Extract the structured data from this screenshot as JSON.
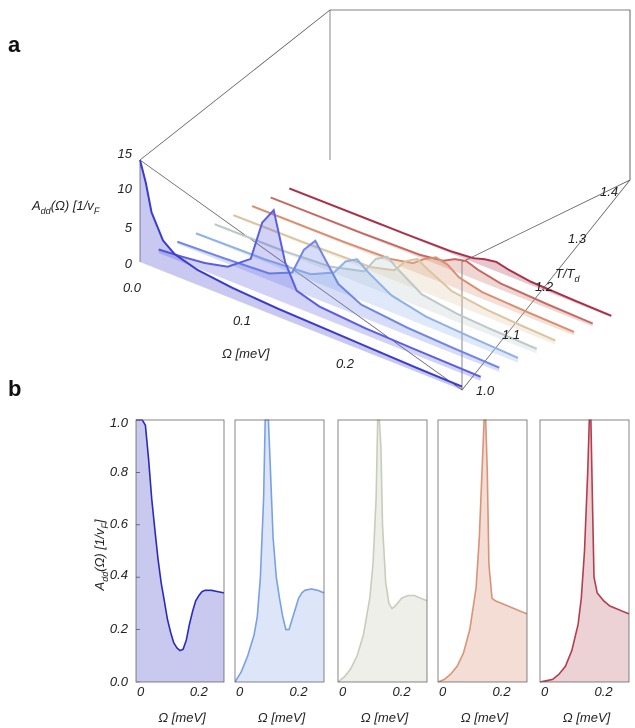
{
  "panel_a": {
    "letter": "a",
    "z_axis_label": "A",
    "z_axis_label_sub": "dd",
    "z_axis_label_rest": "(Ω) [1/v",
    "z_axis_label_sub2": "F",
    "x_axis_label": "Ω [meV]",
    "t_axis_label": "T/T",
    "t_axis_label_sub": "d"
  },
  "panel_b": {
    "letter": "b",
    "y_axis_label": "A",
    "y_axis_label_sub": "dd",
    "y_axis_label_rest": "(Ω) [1/v",
    "y_axis_label_sub2": "F",
    "y_axis_label_end": "]",
    "x_axis_label": "Ω [meV]"
  },
  "chart_data": [
    {
      "type": "line",
      "title": "",
      "xlabel": "Ω [meV]",
      "ylabel": "A_dd(Ω) [1/v_F]",
      "zlabel": "T/T_d",
      "xticks": [
        "0.0",
        "0.1",
        "0.2"
      ],
      "yticks": [
        "0",
        "5",
        "10",
        "15"
      ],
      "zticks": [
        "1.0",
        "1.1",
        "1.2",
        "1.3",
        "1.4"
      ],
      "ylim": [
        0,
        15
      ],
      "xlim": [
        0,
        0.28
      ],
      "series": [
        {
          "T": 1.0,
          "color": "#3b3bcc",
          "x": [
            0,
            0.005,
            0.01,
            0.02,
            0.03,
            0.05,
            0.08,
            0.12,
            0.16,
            0.2,
            0.24,
            0.28
          ],
          "values": [
            15,
            12,
            8,
            4.5,
            3.2,
            2.2,
            1.6,
            1.2,
            1.0,
            0.8,
            0.6,
            0.5
          ]
        },
        {
          "T": 1.05,
          "color": "#5a5fe0",
          "x": [
            0,
            0.02,
            0.04,
            0.06,
            0.08,
            0.09,
            0.1,
            0.11,
            0.12,
            0.14,
            0.18,
            0.22,
            0.28
          ],
          "values": [
            0.5,
            0.8,
            1.2,
            2.0,
            4.5,
            10.5,
            13.0,
            6.0,
            2.5,
            1.5,
            1.0,
            0.8,
            0.6
          ]
        },
        {
          "T": 1.1,
          "color": "#6f86e6",
          "x": [
            0,
            0.04,
            0.08,
            0.1,
            0.11,
            0.12,
            0.13,
            0.14,
            0.16,
            0.2,
            0.24,
            0.28
          ],
          "values": [
            0.3,
            0.6,
            1.0,
            2.5,
            6.5,
            8.5,
            6.0,
            3.5,
            1.8,
            1.1,
            0.8,
            0.6
          ]
        },
        {
          "T": 1.15,
          "color": "#8fb0e8",
          "x": [
            0,
            0.06,
            0.1,
            0.12,
            0.13,
            0.14,
            0.15,
            0.17,
            0.2,
            0.24,
            0.28
          ],
          "values": [
            0.2,
            0.4,
            0.9,
            2.5,
            4.8,
            5.8,
            4.5,
            2.5,
            1.4,
            1.0,
            0.7
          ]
        },
        {
          "T": 1.2,
          "color": "#bcc8c8",
          "x": [
            0,
            0.06,
            0.1,
            0.13,
            0.14,
            0.15,
            0.16,
            0.18,
            0.21,
            0.24,
            0.28
          ],
          "values": [
            0.2,
            0.3,
            0.7,
            2.0,
            4.5,
            5.5,
            4.2,
            2.0,
            1.2,
            0.9,
            0.7
          ]
        },
        {
          "T": 1.25,
          "color": "#dcc4a0",
          "x": [
            0,
            0.06,
            0.12,
            0.14,
            0.15,
            0.16,
            0.17,
            0.19,
            0.22,
            0.25,
            0.28
          ],
          "values": [
            0.2,
            0.3,
            0.6,
            1.5,
            3.5,
            4.5,
            3.5,
            1.8,
            1.1,
            0.8,
            0.6
          ]
        },
        {
          "T": 1.3,
          "color": "#d89070",
          "x": [
            0,
            0.08,
            0.12,
            0.14,
            0.15,
            0.16,
            0.17,
            0.18,
            0.2,
            0.24,
            0.28
          ],
          "values": [
            0.2,
            0.3,
            0.5,
            1.2,
            2.5,
            3.4,
            3.0,
            1.8,
            1.0,
            0.7,
            0.5
          ]
        },
        {
          "T": 1.35,
          "color": "#c56a62",
          "x": [
            0,
            0.08,
            0.13,
            0.15,
            0.16,
            0.17,
            0.18,
            0.2,
            0.24,
            0.28
          ],
          "values": [
            0.1,
            0.2,
            0.4,
            0.9,
            1.8,
            2.2,
            1.6,
            0.9,
            0.6,
            0.4
          ]
        },
        {
          "T": 1.4,
          "color": "#a8324a",
          "x": [
            0,
            0.1,
            0.14,
            0.16,
            0.17,
            0.18,
            0.19,
            0.21,
            0.25,
            0.28
          ],
          "values": [
            0.1,
            0.2,
            0.3,
            0.6,
            1.1,
            1.4,
            1.0,
            0.5,
            0.3,
            0.2
          ]
        }
      ]
    },
    {
      "type": "area",
      "title": "",
      "xlabel": "Ω [meV]",
      "ylabel": "A_dd(Ω) [1/v_F]",
      "ylim": [
        0,
        1.0
      ],
      "xlim": [
        0,
        0.28
      ],
      "yticks": [
        "0.0",
        "0.2",
        "0.4",
        "0.6",
        "0.8",
        "1.0"
      ],
      "xticks": [
        "0",
        "0.2"
      ],
      "series": [
        {
          "name": "",
          "line_color": "#2a2ab8",
          "fill_color": "#c9c8ee",
          "x": [
            0.0,
            0.005,
            0.01,
            0.02,
            0.03,
            0.04,
            0.05,
            0.06,
            0.07,
            0.08,
            0.09,
            0.1,
            0.11,
            0.12,
            0.13,
            0.14,
            0.15,
            0.16,
            0.17,
            0.18,
            0.19,
            0.2,
            0.21,
            0.22,
            0.23,
            0.24,
            0.26,
            0.28
          ],
          "values": [
            1.0,
            1.0,
            1.0,
            1.0,
            0.98,
            0.85,
            0.7,
            0.58,
            0.47,
            0.38,
            0.31,
            0.24,
            0.19,
            0.15,
            0.13,
            0.12,
            0.125,
            0.16,
            0.22,
            0.27,
            0.31,
            0.33,
            0.345,
            0.35,
            0.35,
            0.35,
            0.345,
            0.34
          ]
        },
        {
          "name": "",
          "line_color": "#7aa0e4",
          "fill_color": "#dde6f8",
          "x": [
            0.0,
            0.02,
            0.04,
            0.06,
            0.07,
            0.08,
            0.09,
            0.095,
            0.1,
            0.105,
            0.11,
            0.12,
            0.13,
            0.14,
            0.15,
            0.16,
            0.17,
            0.18,
            0.19,
            0.2,
            0.21,
            0.22,
            0.24,
            0.26,
            0.28
          ],
          "values": [
            0.0,
            0.04,
            0.1,
            0.18,
            0.25,
            0.4,
            0.7,
            1.0,
            1.0,
            1.0,
            0.85,
            0.55,
            0.4,
            0.32,
            0.25,
            0.2,
            0.2,
            0.24,
            0.28,
            0.32,
            0.34,
            0.35,
            0.355,
            0.35,
            0.34
          ]
        },
        {
          "name": "",
          "line_color": "#c8ccbc",
          "fill_color": "#efefe9",
          "x": [
            0.0,
            0.02,
            0.04,
            0.06,
            0.08,
            0.1,
            0.11,
            0.12,
            0.125,
            0.13,
            0.135,
            0.14,
            0.15,
            0.16,
            0.17,
            0.18,
            0.2,
            0.22,
            0.24,
            0.26,
            0.28
          ],
          "values": [
            0.0,
            0.02,
            0.05,
            0.1,
            0.18,
            0.32,
            0.45,
            0.7,
            1.0,
            1.0,
            0.9,
            0.6,
            0.38,
            0.3,
            0.28,
            0.29,
            0.32,
            0.33,
            0.33,
            0.32,
            0.31
          ]
        },
        {
          "name": "",
          "line_color": "#d89478",
          "fill_color": "#f3ddd4",
          "x": [
            0.0,
            0.02,
            0.04,
            0.06,
            0.08,
            0.1,
            0.12,
            0.13,
            0.14,
            0.145,
            0.15,
            0.155,
            0.16,
            0.17,
            0.18,
            0.2,
            0.22,
            0.24,
            0.26,
            0.28
          ],
          "values": [
            0.0,
            0.01,
            0.03,
            0.06,
            0.11,
            0.2,
            0.36,
            0.55,
            0.85,
            1.0,
            1.0,
            0.8,
            0.45,
            0.32,
            0.31,
            0.3,
            0.29,
            0.28,
            0.27,
            0.26
          ]
        },
        {
          "name": "",
          "line_color": "#b23e4e",
          "fill_color": "#ecd2d4",
          "x": [
            0.0,
            0.02,
            0.04,
            0.06,
            0.08,
            0.1,
            0.12,
            0.13,
            0.14,
            0.15,
            0.155,
            0.16,
            0.165,
            0.17,
            0.18,
            0.2,
            0.22,
            0.24,
            0.26,
            0.28
          ],
          "values": [
            0.0,
            0.005,
            0.01,
            0.03,
            0.06,
            0.12,
            0.22,
            0.32,
            0.5,
            0.8,
            1.0,
            1.0,
            0.7,
            0.4,
            0.34,
            0.31,
            0.29,
            0.28,
            0.27,
            0.26
          ]
        }
      ]
    }
  ]
}
